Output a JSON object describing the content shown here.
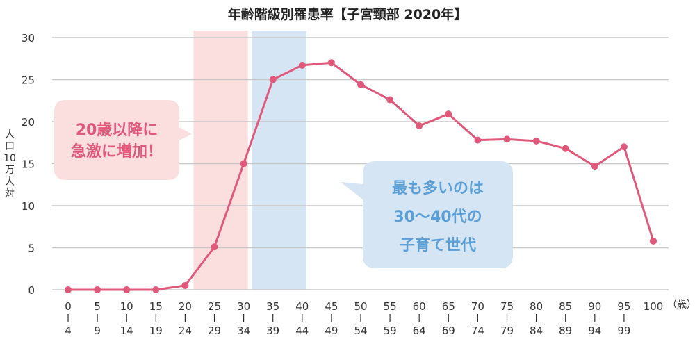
{
  "chart_data": {
    "type": "line",
    "title": "年齢階級別罹患率【子宮頸部 2020年】",
    "ylabel": "人口10万人対",
    "xunit": "（歳）",
    "ylim": [
      0,
      30
    ],
    "yticks": [
      0,
      5,
      10,
      15,
      20,
      25,
      30
    ],
    "grid": true,
    "categories": [
      {
        "top": "0",
        "bottom": "4"
      },
      {
        "top": "5",
        "bottom": "9"
      },
      {
        "top": "10",
        "bottom": "14"
      },
      {
        "top": "15",
        "bottom": "19"
      },
      {
        "top": "20",
        "bottom": "24"
      },
      {
        "top": "25",
        "bottom": "29"
      },
      {
        "top": "30",
        "bottom": "34"
      },
      {
        "top": "35",
        "bottom": "39"
      },
      {
        "top": "40",
        "bottom": "44"
      },
      {
        "top": "45",
        "bottom": "49"
      },
      {
        "top": "50",
        "bottom": "54"
      },
      {
        "top": "55",
        "bottom": "59"
      },
      {
        "top": "60",
        "bottom": "64"
      },
      {
        "top": "65",
        "bottom": "69"
      },
      {
        "top": "70",
        "bottom": "74"
      },
      {
        "top": "75",
        "bottom": "79"
      },
      {
        "top": "80",
        "bottom": "84"
      },
      {
        "top": "85",
        "bottom": "89"
      },
      {
        "top": "90",
        "bottom": "94"
      },
      {
        "top": "95",
        "bottom": "99"
      },
      {
        "top": "100",
        "bottom": ""
      }
    ],
    "values": [
      0,
      0,
      0,
      0,
      0.5,
      5.1,
      15.0,
      25.0,
      26.7,
      27.0,
      24.4,
      22.6,
      19.5,
      20.9,
      17.8,
      17.9,
      17.7,
      16.8,
      14.7,
      17.0,
      5.8
    ],
    "line_color": "#e0587a",
    "highlight_bands": [
      {
        "from": 5,
        "to": 7,
        "color": "#fbdede"
      },
      {
        "from": 7,
        "to": 9,
        "color": "#d5e5f4"
      }
    ],
    "annotations": [
      {
        "lines": [
          "20歳以降に",
          "急激に増加！"
        ],
        "color": "#e0587a",
        "fill": "#fbdede"
      },
      {
        "lines": [
          "最も多いのは",
          "30〜40代の",
          "子育て世代"
        ],
        "color": "#5b9fd6",
        "fill": "#d5e5f4"
      }
    ]
  }
}
